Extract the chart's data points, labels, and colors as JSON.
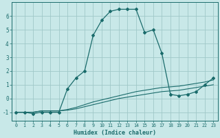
{
  "xlabel": "Humidex (Indice chaleur)",
  "bg_color": "#c8e8e8",
  "line_color": "#1a6b6b",
  "grid_color": "#a0c8c8",
  "xlim": [
    -0.5,
    23.5
  ],
  "ylim": [
    -1.6,
    7.0
  ],
  "xticks": [
    0,
    1,
    2,
    3,
    4,
    5,
    6,
    7,
    8,
    9,
    10,
    11,
    12,
    13,
    14,
    15,
    16,
    17,
    18,
    19,
    20,
    21,
    22,
    23
  ],
  "yticks": [
    -1,
    0,
    1,
    2,
    3,
    4,
    5,
    6
  ],
  "curve_x": [
    0,
    1,
    2,
    3,
    4,
    5,
    6,
    7,
    8,
    9,
    10,
    11,
    12,
    13,
    14,
    15,
    16,
    17,
    18,
    19,
    20,
    21,
    22,
    23
  ],
  "curve_y": [
    -1.0,
    -1.0,
    -1.1,
    -1.0,
    -1.0,
    -1.0,
    0.7,
    1.5,
    2.0,
    4.6,
    5.7,
    6.35,
    6.5,
    6.5,
    6.5,
    4.8,
    5.0,
    3.3,
    0.3,
    0.2,
    0.3,
    0.5,
    1.0,
    1.5
  ],
  "flat1_x": [
    0,
    1,
    2,
    3,
    4,
    5,
    6,
    7,
    8,
    9,
    10,
    11,
    12,
    13,
    14,
    15,
    16,
    17,
    18,
    19,
    20,
    21,
    22,
    23
  ],
  "flat1_y": [
    -1.0,
    -1.0,
    -1.0,
    -0.9,
    -0.9,
    -0.9,
    -0.85,
    -0.75,
    -0.6,
    -0.45,
    -0.3,
    -0.15,
    0.0,
    0.1,
    0.2,
    0.3,
    0.4,
    0.5,
    0.55,
    0.6,
    0.7,
    0.8,
    0.9,
    1.0
  ],
  "flat2_x": [
    0,
    1,
    2,
    3,
    4,
    5,
    6,
    7,
    8,
    9,
    10,
    11,
    12,
    13,
    14,
    15,
    16,
    17,
    18,
    19,
    20,
    21,
    22,
    23
  ],
  "flat2_y": [
    -1.0,
    -1.0,
    -1.0,
    -0.9,
    -0.9,
    -0.9,
    -0.8,
    -0.65,
    -0.45,
    -0.25,
    -0.1,
    0.05,
    0.2,
    0.35,
    0.5,
    0.6,
    0.7,
    0.8,
    0.85,
    0.9,
    1.0,
    1.1,
    1.2,
    1.35
  ]
}
